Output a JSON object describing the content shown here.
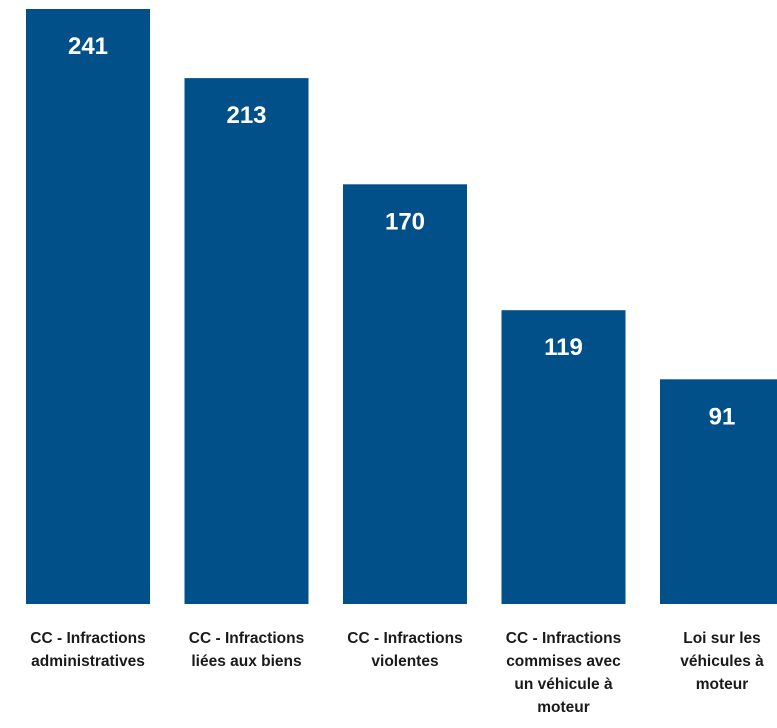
{
  "chart_data": {
    "type": "bar",
    "categories": [
      "CC - Infractions administratives",
      "CC - Infractions liées aux biens",
      "CC - Infractions violentes",
      "CC - Infractions commises avec un véhicule à moteur",
      "Loi sur les véhicules à moteur"
    ],
    "category_label_lines": [
      [
        "CC - Infractions",
        "administratives"
      ],
      [
        "CC - Infractions",
        "liées aux biens"
      ],
      [
        "CC - Infractions",
        "violentes"
      ],
      [
        "CC - Infractions",
        "commises avec",
        "un véhicule à",
        "moteur"
      ],
      [
        "Loi sur les",
        "véhicules à",
        "moteur"
      ]
    ],
    "values": [
      241,
      213,
      170,
      119,
      91
    ],
    "value_labels": [
      "241",
      "213",
      "170",
      "119",
      "91"
    ],
    "bar_color": "#02508A",
    "label_color": "#1a1a1a",
    "value_label_color": "#ffffff",
    "title": "",
    "xlabel": "",
    "ylabel": "",
    "ylim": [
      0,
      241
    ],
    "grid": false,
    "legend": "none",
    "data_labels": "inside-top"
  }
}
